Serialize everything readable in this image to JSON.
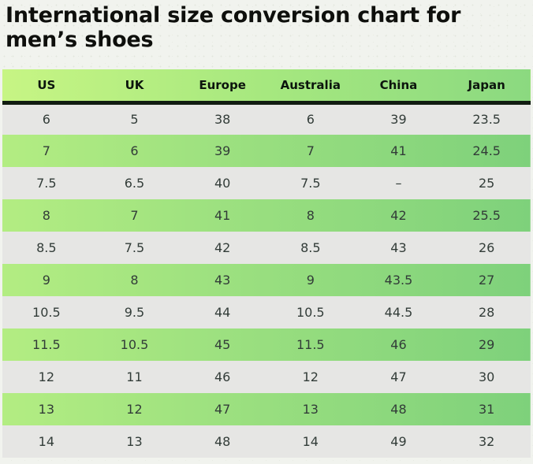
{
  "page": {
    "title": "International size conversion chart for men’s shoes"
  },
  "table": {
    "columns": [
      "US",
      "UK",
      "Europe",
      "Australia",
      "China",
      "Japan"
    ],
    "rows": [
      [
        "6",
        "5",
        "38",
        "6",
        "39",
        "23.5"
      ],
      [
        "7",
        "6",
        "39",
        "7",
        "41",
        "24.5"
      ],
      [
        "7.5",
        "6.5",
        "40",
        "7.5",
        "–",
        "25"
      ],
      [
        "8",
        "7",
        "41",
        "8",
        "42",
        "25.5"
      ],
      [
        "8.5",
        "7.5",
        "42",
        "8.5",
        "43",
        "26"
      ],
      [
        "9",
        "8",
        "43",
        "9",
        "43.5",
        "27"
      ],
      [
        "10.5",
        "9.5",
        "44",
        "10.5",
        "44.5",
        "28"
      ],
      [
        "11.5",
        "10.5",
        "45",
        "11.5",
        "46",
        "29"
      ],
      [
        "12",
        "11",
        "46",
        "12",
        "47",
        "30"
      ],
      [
        "13",
        "12",
        "47",
        "13",
        "48",
        "31"
      ],
      [
        "14",
        "13",
        "48",
        "14",
        "49",
        "32"
      ]
    ]
  },
  "colors": {
    "page_background": "#f1f3ee",
    "header_gradient_start": "#c7f584",
    "header_gradient_end": "#8bd980",
    "header_border": "#111c11",
    "row_gray": "#e6e6e4",
    "row_green_gradient_start": "#b3ed82",
    "row_green_gradient_end": "#7ed17b",
    "title_text": "#0e0f0c",
    "cell_text": "#323c38"
  }
}
